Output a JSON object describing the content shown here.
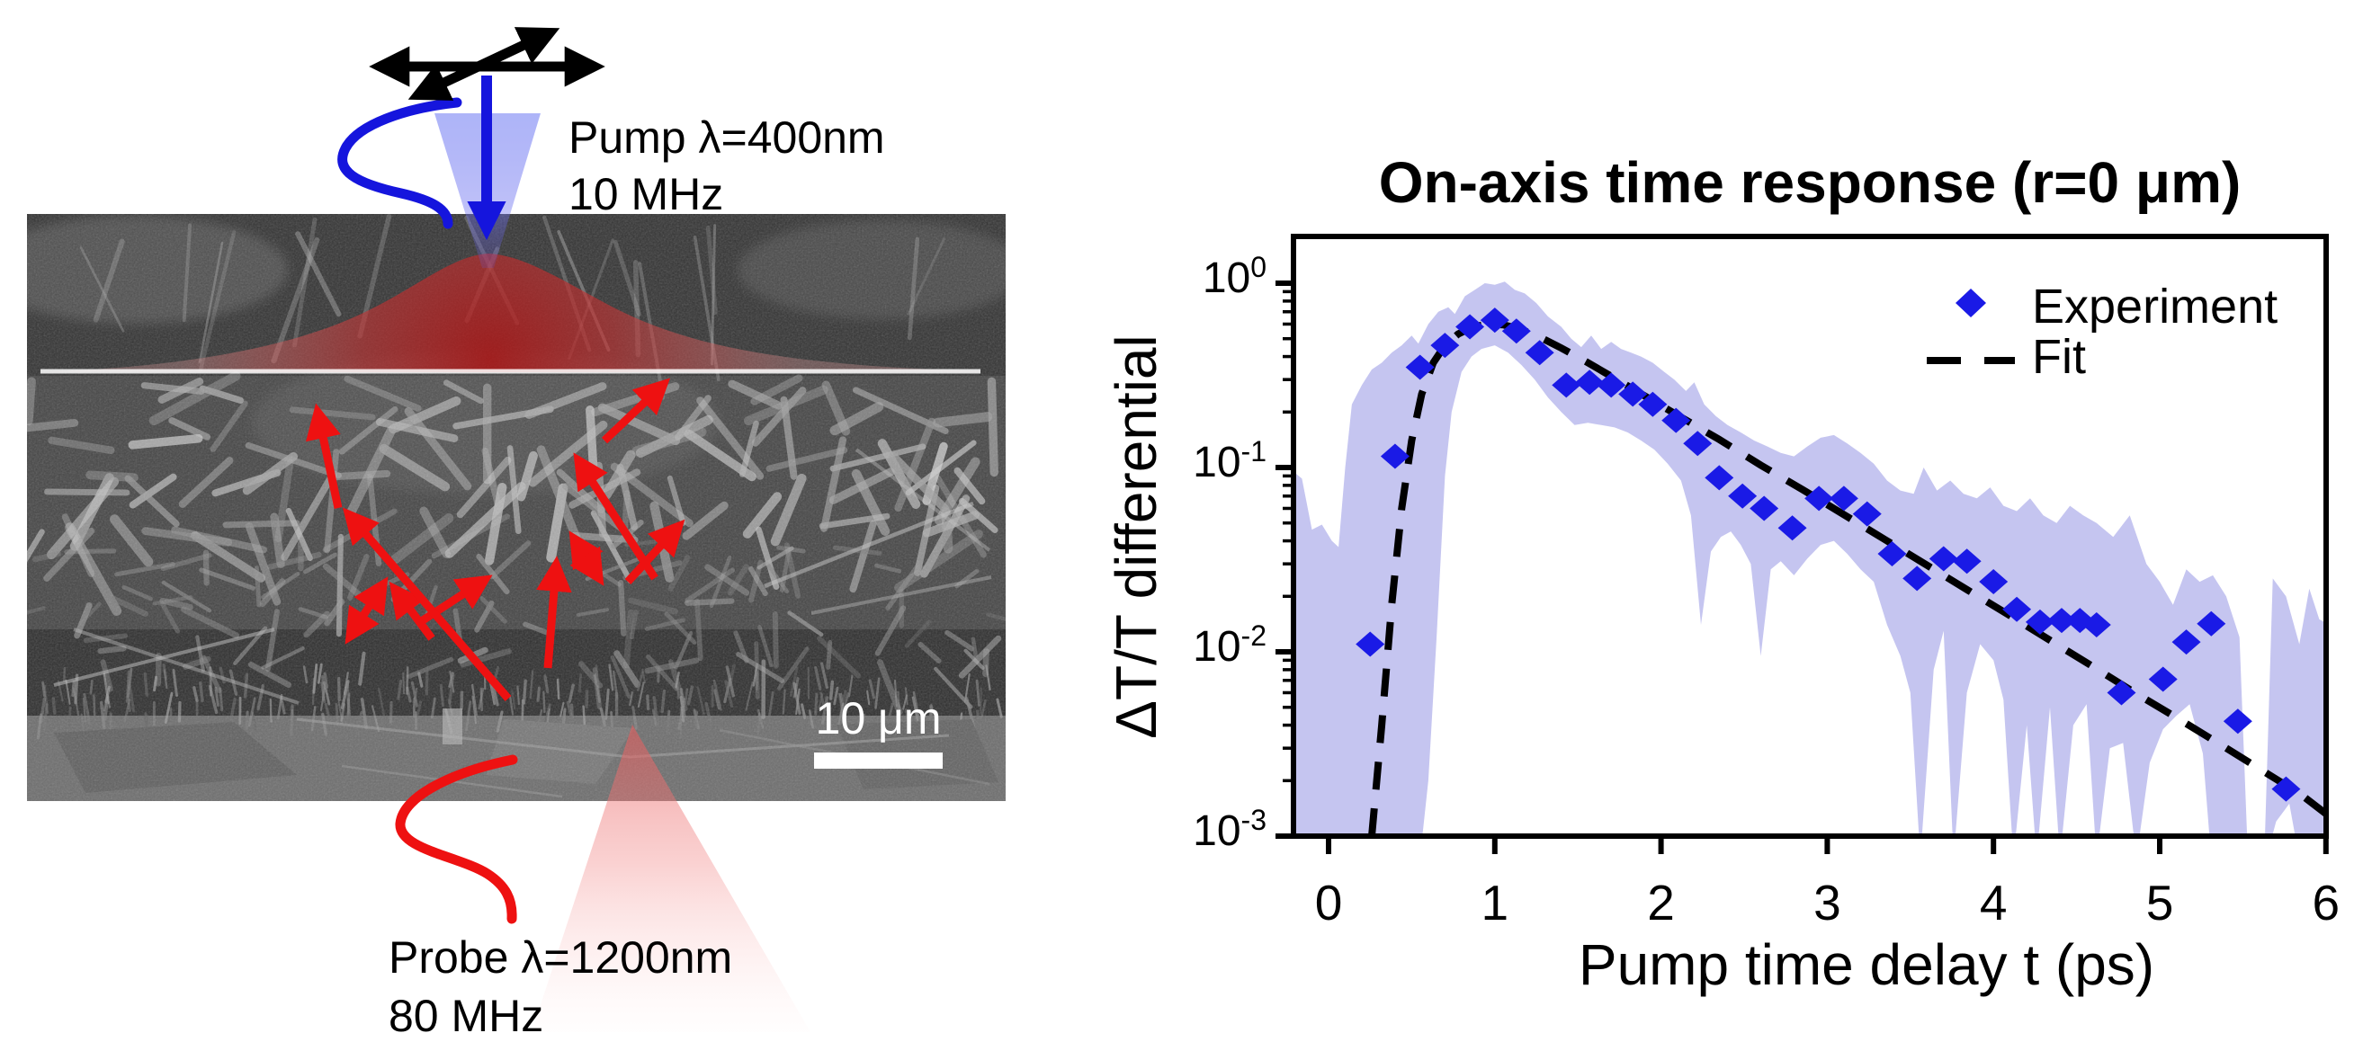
{
  "left_panel": {
    "pump_label": {
      "line1": "Pump λ=400nm",
      "line2": "10 MHz"
    },
    "probe_label": {
      "line1": "Probe λ=1200nm",
      "line2": "80 MHz"
    },
    "scale_bar": {
      "label": "10 μm"
    },
    "colors": {
      "pump_blue": "#1515dd",
      "probe_red": "#ee1111",
      "scatter_arrow_red": "#ee1111",
      "excitation_blob_red": "#c03030",
      "scan_arrow_black": "#000000",
      "sem_background": "#454545",
      "substrate_gray": "#6d6d6d"
    }
  },
  "chart": {
    "title": "On-axis time response (r=0 μm)",
    "xlabel": "Pump time delay t (ps)",
    "ylabel": "ΔT/T differential",
    "legend": {
      "experiment": "Experiment",
      "fit": "Fit"
    }
  },
  "chart_data": {
    "type": "scatter",
    "title": "On-axis time response (r=0 μm)",
    "xlabel": "Pump time delay t (ps)",
    "ylabel": "ΔT/T differential",
    "x_ticks": [
      0,
      1,
      2,
      3,
      4,
      5,
      6
    ],
    "y_tick_exponents": [
      0,
      -1,
      -2,
      -3
    ],
    "xlim": [
      -0.21,
      6.0
    ],
    "ylog_min": -3,
    "ylog_max": 0.25,
    "grid": false,
    "legend_position": "upper right",
    "series": [
      {
        "name": "Experiment",
        "type": "scatter",
        "marker": "diamond",
        "color": "#1a1ae6",
        "points": [
          [
            0.25,
            0.011
          ],
          [
            0.4,
            0.115
          ],
          [
            0.55,
            0.35
          ],
          [
            0.7,
            0.46
          ],
          [
            0.85,
            0.58
          ],
          [
            1.0,
            0.63
          ],
          [
            1.13,
            0.55
          ],
          [
            1.27,
            0.42
          ],
          [
            1.43,
            0.28
          ],
          [
            1.57,
            0.29
          ],
          [
            1.7,
            0.28
          ],
          [
            1.83,
            0.25
          ],
          [
            1.95,
            0.22
          ],
          [
            2.09,
            0.18
          ],
          [
            2.22,
            0.135
          ],
          [
            2.35,
            0.088
          ],
          [
            2.49,
            0.07
          ],
          [
            2.62,
            0.06
          ],
          [
            2.79,
            0.047
          ],
          [
            2.95,
            0.068
          ],
          [
            3.1,
            0.068
          ],
          [
            3.24,
            0.056
          ],
          [
            3.39,
            0.034
          ],
          [
            3.54,
            0.025
          ],
          [
            3.7,
            0.032
          ],
          [
            3.84,
            0.031
          ],
          [
            4.0,
            0.024
          ],
          [
            4.14,
            0.017
          ],
          [
            4.28,
            0.0145
          ],
          [
            4.41,
            0.0148
          ],
          [
            4.52,
            0.0148
          ],
          [
            4.62,
            0.014
          ],
          [
            4.77,
            0.006
          ],
          [
            5.02,
            0.0071
          ],
          [
            5.16,
            0.0113
          ],
          [
            5.31,
            0.0142
          ],
          [
            5.47,
            0.0042
          ],
          [
            5.76,
            0.0018
          ]
        ]
      },
      {
        "name": "Fit",
        "type": "line",
        "style": "dashed",
        "color": "#000000",
        "points": [
          [
            0.26,
            0.001
          ],
          [
            0.32,
            0.004
          ],
          [
            0.38,
            0.018
          ],
          [
            0.44,
            0.06
          ],
          [
            0.5,
            0.14
          ],
          [
            0.56,
            0.25
          ],
          [
            0.63,
            0.37
          ],
          [
            0.7,
            0.46
          ],
          [
            0.78,
            0.53
          ],
          [
            0.86,
            0.575
          ],
          [
            0.95,
            0.6
          ],
          [
            1.05,
            0.595
          ],
          [
            1.15,
            0.565
          ],
          [
            1.27,
            0.51
          ],
          [
            1.4,
            0.445
          ],
          [
            1.55,
            0.375
          ],
          [
            1.72,
            0.305
          ],
          [
            1.9,
            0.245
          ],
          [
            2.1,
            0.192
          ],
          [
            2.35,
            0.142
          ],
          [
            2.6,
            0.103
          ],
          [
            2.85,
            0.076
          ],
          [
            3.1,
            0.0555
          ],
          [
            3.35,
            0.0405
          ],
          [
            3.6,
            0.0295
          ],
          [
            3.85,
            0.0215
          ],
          [
            4.1,
            0.0157
          ],
          [
            4.35,
            0.0114
          ],
          [
            4.6,
            0.0083
          ],
          [
            4.85,
            0.006
          ],
          [
            5.1,
            0.0044
          ],
          [
            5.35,
            0.0032
          ],
          [
            5.6,
            0.00232
          ],
          [
            5.85,
            0.00168
          ],
          [
            6.02,
            0.00128
          ]
        ]
      },
      {
        "name": "Uncertainty band",
        "type": "band",
        "color": "#c5c5f0",
        "upper": [
          [
            -0.21,
            0.095
          ],
          [
            -0.16,
            0.087
          ],
          [
            -0.1,
            0.046
          ],
          [
            -0.04,
            0.049
          ],
          [
            0.02,
            0.04
          ],
          [
            0.06,
            0.037
          ],
          [
            0.1,
            0.1
          ],
          [
            0.14,
            0.22
          ],
          [
            0.2,
            0.28
          ],
          [
            0.26,
            0.34
          ],
          [
            0.32,
            0.37
          ],
          [
            0.38,
            0.42
          ],
          [
            0.44,
            0.46
          ],
          [
            0.5,
            0.52
          ],
          [
            0.54,
            0.47
          ],
          [
            0.6,
            0.6
          ],
          [
            0.66,
            0.7
          ],
          [
            0.72,
            0.74
          ],
          [
            0.76,
            0.68
          ],
          [
            0.82,
            0.85
          ],
          [
            0.88,
            0.92
          ],
          [
            0.94,
            1.0
          ],
          [
            1.0,
            0.98
          ],
          [
            1.06,
            1.02
          ],
          [
            1.12,
            0.92
          ],
          [
            1.18,
            0.88
          ],
          [
            1.25,
            0.78
          ],
          [
            1.32,
            0.66
          ],
          [
            1.4,
            0.58
          ],
          [
            1.46,
            0.5
          ],
          [
            1.52,
            0.45
          ],
          [
            1.58,
            0.52
          ],
          [
            1.64,
            0.44
          ],
          [
            1.7,
            0.48
          ],
          [
            1.76,
            0.44
          ],
          [
            1.82,
            0.42
          ],
          [
            1.88,
            0.4
          ],
          [
            1.95,
            0.37
          ],
          [
            2.02,
            0.33
          ],
          [
            2.08,
            0.3
          ],
          [
            2.15,
            0.26
          ],
          [
            2.2,
            0.29
          ],
          [
            2.26,
            0.22
          ],
          [
            2.33,
            0.19
          ],
          [
            2.4,
            0.17
          ],
          [
            2.48,
            0.155
          ],
          [
            2.56,
            0.14
          ],
          [
            2.64,
            0.13
          ],
          [
            2.72,
            0.12
          ],
          [
            2.8,
            0.115
          ],
          [
            2.88,
            0.13
          ],
          [
            2.96,
            0.145
          ],
          [
            3.04,
            0.15
          ],
          [
            3.12,
            0.135
          ],
          [
            3.2,
            0.12
          ],
          [
            3.28,
            0.105
          ],
          [
            3.36,
            0.085
          ],
          [
            3.44,
            0.075
          ],
          [
            3.52,
            0.072
          ],
          [
            3.58,
            0.1
          ],
          [
            3.66,
            0.075
          ],
          [
            3.74,
            0.085
          ],
          [
            3.82,
            0.072
          ],
          [
            3.9,
            0.068
          ],
          [
            3.98,
            0.078
          ],
          [
            4.06,
            0.062
          ],
          [
            4.14,
            0.058
          ],
          [
            4.22,
            0.068
          ],
          [
            4.3,
            0.055
          ],
          [
            4.38,
            0.05
          ],
          [
            4.46,
            0.062
          ],
          [
            4.54,
            0.055
          ],
          [
            4.62,
            0.05
          ],
          [
            4.72,
            0.042
          ],
          [
            4.82,
            0.055
          ],
          [
            4.92,
            0.03
          ],
          [
            5.0,
            0.024
          ],
          [
            5.08,
            0.018
          ],
          [
            5.16,
            0.028
          ],
          [
            5.24,
            0.024
          ],
          [
            5.32,
            0.026
          ],
          [
            5.4,
            0.02
          ],
          [
            5.48,
            0.012
          ],
          [
            5.53,
            0.0008
          ],
          [
            5.63,
            0.0008
          ],
          [
            5.68,
            0.025
          ],
          [
            5.76,
            0.02
          ],
          [
            5.84,
            0.011
          ],
          [
            5.9,
            0.022
          ],
          [
            5.96,
            0.015
          ],
          [
            6.02,
            0.014
          ]
        ],
        "lower": [
          [
            -0.21,
            0.0008
          ],
          [
            0.55,
            0.0008
          ],
          [
            0.6,
            0.002
          ],
          [
            0.65,
            0.012
          ],
          [
            0.7,
            0.09
          ],
          [
            0.74,
            0.2
          ],
          [
            0.8,
            0.33
          ],
          [
            0.86,
            0.4
          ],
          [
            0.92,
            0.44
          ],
          [
            1.0,
            0.46
          ],
          [
            1.08,
            0.42
          ],
          [
            1.16,
            0.36
          ],
          [
            1.24,
            0.3
          ],
          [
            1.32,
            0.24
          ],
          [
            1.4,
            0.2
          ],
          [
            1.48,
            0.17
          ],
          [
            1.56,
            0.175
          ],
          [
            1.64,
            0.17
          ],
          [
            1.72,
            0.165
          ],
          [
            1.8,
            0.155
          ],
          [
            1.88,
            0.14
          ],
          [
            1.96,
            0.125
          ],
          [
            2.04,
            0.105
          ],
          [
            2.12,
            0.085
          ],
          [
            2.18,
            0.055
          ],
          [
            2.24,
            0.014
          ],
          [
            2.3,
            0.035
          ],
          [
            2.36,
            0.042
          ],
          [
            2.42,
            0.045
          ],
          [
            2.48,
            0.038
          ],
          [
            2.54,
            0.03
          ],
          [
            2.6,
            0.0095
          ],
          [
            2.66,
            0.028
          ],
          [
            2.72,
            0.031
          ],
          [
            2.8,
            0.026
          ],
          [
            2.88,
            0.032
          ],
          [
            2.96,
            0.038
          ],
          [
            3.04,
            0.04
          ],
          [
            3.12,
            0.034
          ],
          [
            3.2,
            0.028
          ],
          [
            3.28,
            0.024
          ],
          [
            3.36,
            0.014
          ],
          [
            3.44,
            0.0095
          ],
          [
            3.5,
            0.006
          ],
          [
            3.56,
            0.0008
          ],
          [
            3.64,
            0.008
          ],
          [
            3.7,
            0.013
          ],
          [
            3.76,
            0.0008
          ],
          [
            3.84,
            0.006
          ],
          [
            3.92,
            0.011
          ],
          [
            4.0,
            0.009
          ],
          [
            4.06,
            0.0055
          ],
          [
            4.12,
            0.0008
          ],
          [
            4.2,
            0.004
          ],
          [
            4.26,
            0.0008
          ],
          [
            4.34,
            0.005
          ],
          [
            4.4,
            0.0008
          ],
          [
            4.48,
            0.004
          ],
          [
            4.56,
            0.0052
          ],
          [
            4.62,
            0.0008
          ],
          [
            4.7,
            0.003
          ],
          [
            4.78,
            0.0032
          ],
          [
            4.86,
            0.0008
          ],
          [
            4.94,
            0.0025
          ],
          [
            5.02,
            0.0038
          ],
          [
            5.1,
            0.0045
          ],
          [
            5.18,
            0.0052
          ],
          [
            5.26,
            0.0028
          ],
          [
            5.31,
            0.0008
          ],
          [
            5.64,
            0.0008
          ],
          [
            5.7,
            0.0012
          ],
          [
            5.78,
            0.0015
          ],
          [
            5.84,
            0.0008
          ],
          [
            6.02,
            0.0008
          ]
        ]
      }
    ]
  }
}
